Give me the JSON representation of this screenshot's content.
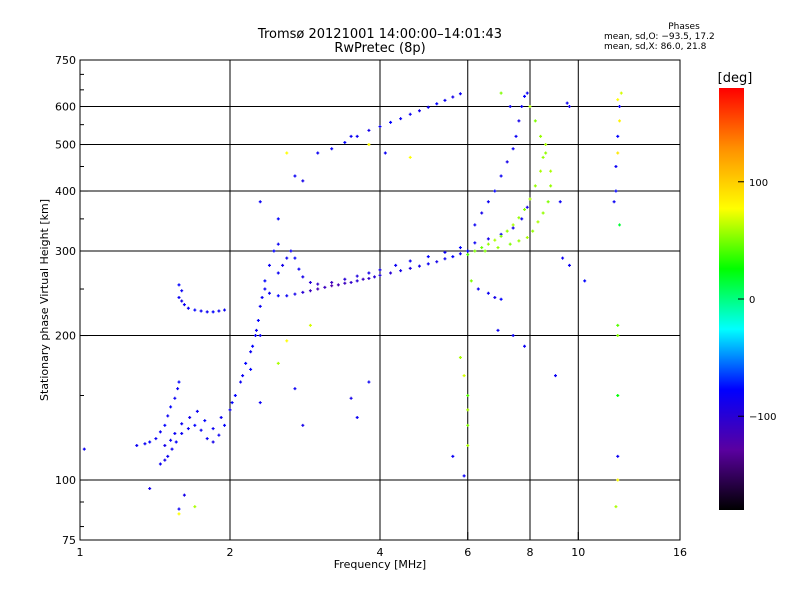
{
  "header": {
    "title": "Tromsø 20121001 14:00:00–14:01:43",
    "subtitle": "RwPretec (8p)"
  },
  "stats": {
    "heading": "Phases",
    "line_o": "mean, sd,O: −93.5, 17.2",
    "line_x": "mean, sd,X:  86.0, 21.8"
  },
  "colorbar": {
    "label": "[deg]",
    "ticks": [
      {
        "value": 100,
        "label": "100"
      },
      {
        "value": 0,
        "label": "0"
      },
      {
        "value": -100,
        "label": "−100"
      }
    ],
    "range": [
      -180,
      180
    ],
    "stops": [
      "#000000",
      "#5a00a0",
      "#0000ff",
      "#00ffff",
      "#00ff00",
      "#ffff00",
      "#ff9000",
      "#ff0000"
    ]
  },
  "chart_data": {
    "type": "scatter",
    "xlabel": "Frequency [MHz]",
    "ylabel": "Stationary phase Virtual Height [km]",
    "x_scale": "log",
    "y_scale": "log",
    "xlim": [
      1,
      16
    ],
    "ylim": [
      75,
      750
    ],
    "x_ticks": [
      1,
      2,
      4,
      6,
      8,
      10,
      16
    ],
    "y_ticks": [
      75,
      100,
      200,
      300,
      400,
      500,
      600,
      750
    ],
    "x_grid": [
      2,
      4,
      6,
      8,
      10
    ],
    "y_grid": [
      100,
      200,
      300,
      400,
      500,
      600
    ],
    "color_variable": "phase [deg]",
    "points_format": [
      "freq_MHz",
      "height_km",
      "phase_deg"
    ],
    "points": [
      [
        1.02,
        116,
        -95
      ],
      [
        1.38,
        96,
        -100
      ],
      [
        1.62,
        93,
        -100
      ],
      [
        1.58,
        87,
        -95
      ],
      [
        1.7,
        88,
        60
      ],
      [
        1.58,
        85,
        80
      ],
      [
        1.3,
        118,
        -95
      ],
      [
        1.35,
        119,
        -95
      ],
      [
        1.38,
        120,
        -90
      ],
      [
        1.42,
        122,
        -95
      ],
      [
        1.45,
        126,
        -95
      ],
      [
        1.48,
        130,
        -90
      ],
      [
        1.5,
        136,
        -95
      ],
      [
        1.52,
        142,
        -90
      ],
      [
        1.55,
        148,
        -95
      ],
      [
        1.57,
        155,
        -95
      ],
      [
        1.58,
        160,
        -90
      ],
      [
        1.45,
        108,
        -95
      ],
      [
        1.48,
        110,
        -100
      ],
      [
        1.5,
        112,
        -95
      ],
      [
        1.53,
        116,
        -95
      ],
      [
        1.56,
        120,
        -90
      ],
      [
        1.6,
        125,
        -95
      ],
      [
        1.65,
        128,
        -95
      ],
      [
        1.7,
        130,
        -90
      ],
      [
        1.75,
        127,
        -95
      ],
      [
        1.8,
        122,
        -95
      ],
      [
        1.85,
        120,
        -100
      ],
      [
        1.9,
        124,
        -95
      ],
      [
        1.95,
        130,
        -90
      ],
      [
        2.0,
        140,
        -95
      ],
      [
        2.05,
        150,
        -90
      ],
      [
        2.1,
        160,
        -95
      ],
      [
        2.15,
        175,
        -90
      ],
      [
        2.2,
        185,
        -95
      ],
      [
        2.25,
        200,
        -95
      ],
      [
        2.28,
        215,
        -90
      ],
      [
        2.3,
        230,
        -95
      ],
      [
        1.48,
        118,
        -100
      ],
      [
        1.52,
        121,
        -95
      ],
      [
        1.55,
        125,
        -95
      ],
      [
        1.6,
        131,
        -95
      ],
      [
        1.66,
        135,
        -100
      ],
      [
        1.72,
        139,
        -95
      ],
      [
        1.78,
        133,
        -90
      ],
      [
        1.85,
        128,
        -95
      ],
      [
        1.92,
        135,
        -95
      ],
      [
        2.02,
        145,
        -90
      ],
      [
        2.12,
        165,
        -95
      ],
      [
        2.22,
        190,
        -90
      ],
      [
        2.26,
        205,
        -95
      ],
      [
        2.32,
        240,
        -95
      ],
      [
        2.35,
        260,
        -90
      ],
      [
        2.4,
        280,
        -95
      ],
      [
        2.45,
        300,
        -90
      ],
      [
        2.5,
        310,
        -95
      ],
      [
        1.58,
        240,
        -95
      ],
      [
        1.6,
        236,
        -100
      ],
      [
        1.62,
        232,
        -95
      ],
      [
        1.65,
        228,
        -95
      ],
      [
        1.7,
        226,
        -90
      ],
      [
        1.75,
        225,
        -95
      ],
      [
        1.8,
        224,
        -95
      ],
      [
        1.85,
        224,
        -90
      ],
      [
        1.9,
        225,
        -95
      ],
      [
        1.95,
        226,
        -95
      ],
      [
        1.6,
        248,
        -95
      ],
      [
        1.58,
        255,
        -90
      ],
      [
        2.35,
        250,
        -95
      ],
      [
        2.4,
        245,
        -95
      ],
      [
        2.5,
        242,
        -90
      ],
      [
        2.6,
        242,
        -95
      ],
      [
        2.7,
        244,
        -100
      ],
      [
        2.8,
        246,
        -110
      ],
      [
        2.9,
        248,
        -120
      ],
      [
        3.0,
        250,
        -125
      ],
      [
        3.1,
        252,
        -120
      ],
      [
        3.2,
        254,
        -130
      ],
      [
        3.3,
        255,
        -125
      ],
      [
        3.4,
        257,
        -120
      ],
      [
        3.5,
        258,
        -115
      ],
      [
        3.6,
        260,
        -110
      ],
      [
        3.7,
        262,
        -120
      ],
      [
        3.8,
        263,
        -115
      ],
      [
        3.9,
        265,
        -110
      ],
      [
        4.0,
        267,
        -105
      ],
      [
        4.2,
        270,
        -110
      ],
      [
        4.4,
        273,
        -100
      ],
      [
        4.6,
        276,
        -105
      ],
      [
        4.8,
        279,
        -100
      ],
      [
        5.0,
        282,
        -95
      ],
      [
        5.2,
        285,
        -100
      ],
      [
        5.4,
        289,
        -95
      ],
      [
        5.6,
        292,
        -90
      ],
      [
        5.8,
        296,
        -95
      ],
      [
        6.0,
        300,
        -90
      ],
      [
        2.5,
        270,
        -95
      ],
      [
        2.55,
        280,
        -100
      ],
      [
        2.6,
        290,
        -95
      ],
      [
        2.65,
        300,
        -95
      ],
      [
        2.7,
        290,
        -90
      ],
      [
        2.75,
        275,
        -95
      ],
      [
        2.8,
        265,
        -100
      ],
      [
        2.9,
        258,
        -110
      ],
      [
        3.0,
        256,
        -115
      ],
      [
        3.2,
        258,
        -120
      ],
      [
        3.4,
        262,
        -110
      ],
      [
        3.6,
        266,
        -105
      ],
      [
        3.8,
        270,
        -100
      ],
      [
        4.0,
        274,
        -100
      ],
      [
        4.3,
        280,
        -95
      ],
      [
        4.6,
        286,
        -95
      ],
      [
        5.0,
        292,
        -90
      ],
      [
        5.4,
        298,
        -95
      ],
      [
        5.8,
        305,
        -90
      ],
      [
        6.2,
        312,
        -95
      ],
      [
        6.6,
        318,
        -100
      ],
      [
        7.0,
        325,
        -95
      ],
      [
        7.4,
        335,
        -100
      ],
      [
        7.7,
        350,
        -95
      ],
      [
        7.9,
        370,
        -100
      ],
      [
        6.0,
        295,
        40
      ],
      [
        6.2,
        300,
        50
      ],
      [
        6.4,
        305,
        45
      ],
      [
        6.6,
        310,
        55
      ],
      [
        6.8,
        316,
        60
      ],
      [
        7.0,
        322,
        50
      ],
      [
        7.2,
        330,
        55
      ],
      [
        7.4,
        340,
        60
      ],
      [
        7.6,
        352,
        55
      ],
      [
        7.8,
        366,
        50
      ],
      [
        8.0,
        385,
        60
      ],
      [
        8.2,
        410,
        55
      ],
      [
        8.4,
        440,
        60
      ],
      [
        8.5,
        470,
        55
      ],
      [
        8.6,
        500,
        60
      ],
      [
        6.5,
        300,
        50
      ],
      [
        6.9,
        305,
        55
      ],
      [
        7.3,
        310,
        50
      ],
      [
        7.6,
        315,
        55
      ],
      [
        7.9,
        320,
        60
      ],
      [
        8.1,
        330,
        55
      ],
      [
        8.3,
        345,
        60
      ],
      [
        8.5,
        360,
        55
      ],
      [
        8.7,
        380,
        50
      ],
      [
        8.8,
        410,
        55
      ],
      [
        6.2,
        340,
        -95
      ],
      [
        6.4,
        360,
        -100
      ],
      [
        6.6,
        380,
        -95
      ],
      [
        6.8,
        400,
        -90
      ],
      [
        7.0,
        430,
        -95
      ],
      [
        7.2,
        460,
        -100
      ],
      [
        7.4,
        490,
        -95
      ],
      [
        7.5,
        520,
        -95
      ],
      [
        7.6,
        560,
        -100
      ],
      [
        7.7,
        600,
        -95
      ],
      [
        7.8,
        630,
        -90
      ],
      [
        7.9,
        640,
        -95
      ],
      [
        3.0,
        480,
        -95
      ],
      [
        3.2,
        490,
        -95
      ],
      [
        3.4,
        505,
        -90
      ],
      [
        3.6,
        520,
        -95
      ],
      [
        3.8,
        535,
        -100
      ],
      [
        4.0,
        545,
        -95
      ],
      [
        4.2,
        556,
        -90
      ],
      [
        4.4,
        566,
        -95
      ],
      [
        4.6,
        578,
        -95
      ],
      [
        4.8,
        588,
        -100
      ],
      [
        5.0,
        598,
        -95
      ],
      [
        5.2,
        608,
        -90
      ],
      [
        5.4,
        618,
        -95
      ],
      [
        5.6,
        628,
        -100
      ],
      [
        5.8,
        638,
        -95
      ],
      [
        7.0,
        640,
        50
      ],
      [
        7.3,
        600,
        -95
      ],
      [
        8.0,
        600,
        60
      ],
      [
        8.2,
        560,
        50
      ],
      [
        8.4,
        520,
        55
      ],
      [
        8.6,
        480,
        55
      ],
      [
        8.8,
        440,
        60
      ],
      [
        9.5,
        610,
        -95
      ],
      [
        9.6,
        600,
        -100
      ],
      [
        11.8,
        380,
        -95
      ],
      [
        11.9,
        450,
        -95
      ],
      [
        12.0,
        520,
        -90
      ],
      [
        12.1,
        600,
        -95
      ],
      [
        12.0,
        620,
        80
      ],
      [
        12.2,
        640,
        70
      ],
      [
        12.1,
        560,
        85
      ],
      [
        12.0,
        480,
        90
      ],
      [
        11.9,
        400,
        -90
      ],
      [
        12.1,
        340,
        10
      ],
      [
        12.0,
        210,
        40
      ],
      [
        12.0,
        200,
        50
      ],
      [
        12.0,
        150,
        20
      ],
      [
        12.0,
        112,
        -95
      ],
      [
        12.0,
        100,
        80
      ],
      [
        11.9,
        88,
        60
      ],
      [
        9.2,
        380,
        -95
      ],
      [
        9.3,
        290,
        -95
      ],
      [
        9.6,
        280,
        -95
      ],
      [
        10.3,
        260,
        -90
      ],
      [
        9.0,
        165,
        -95
      ],
      [
        5.8,
        180,
        60
      ],
      [
        5.9,
        165,
        70
      ],
      [
        6.0,
        150,
        40
      ],
      [
        6.0,
        140,
        60
      ],
      [
        6.0,
        130,
        50
      ],
      [
        6.0,
        118,
        60
      ],
      [
        5.9,
        102,
        -95
      ],
      [
        5.6,
        112,
        -95
      ],
      [
        3.8,
        160,
        -95
      ],
      [
        3.6,
        135,
        -95
      ],
      [
        3.5,
        148,
        -100
      ],
      [
        2.6,
        195,
        80
      ],
      [
        2.5,
        175,
        60
      ],
      [
        2.9,
        210,
        70
      ],
      [
        2.3,
        200,
        -95
      ],
      [
        2.2,
        170,
        -90
      ],
      [
        2.3,
        145,
        -95
      ],
      [
        2.7,
        155,
        -95
      ],
      [
        2.8,
        130,
        -100
      ],
      [
        2.6,
        480,
        80
      ],
      [
        2.7,
        430,
        -95
      ],
      [
        2.8,
        420,
        -100
      ],
      [
        2.3,
        380,
        -95
      ],
      [
        2.5,
        350,
        -90
      ],
      [
        3.5,
        520,
        -95
      ],
      [
        3.8,
        500,
        80
      ],
      [
        4.1,
        480,
        -95
      ],
      [
        4.6,
        470,
        80
      ],
      [
        6.1,
        260,
        50
      ],
      [
        6.3,
        250,
        -95
      ],
      [
        6.6,
        245,
        -95
      ],
      [
        6.8,
        240,
        -100
      ],
      [
        7.0,
        238,
        -90
      ],
      [
        7.4,
        200,
        -95
      ],
      [
        7.8,
        190,
        -95
      ],
      [
        6.9,
        205,
        -95
      ]
    ]
  }
}
